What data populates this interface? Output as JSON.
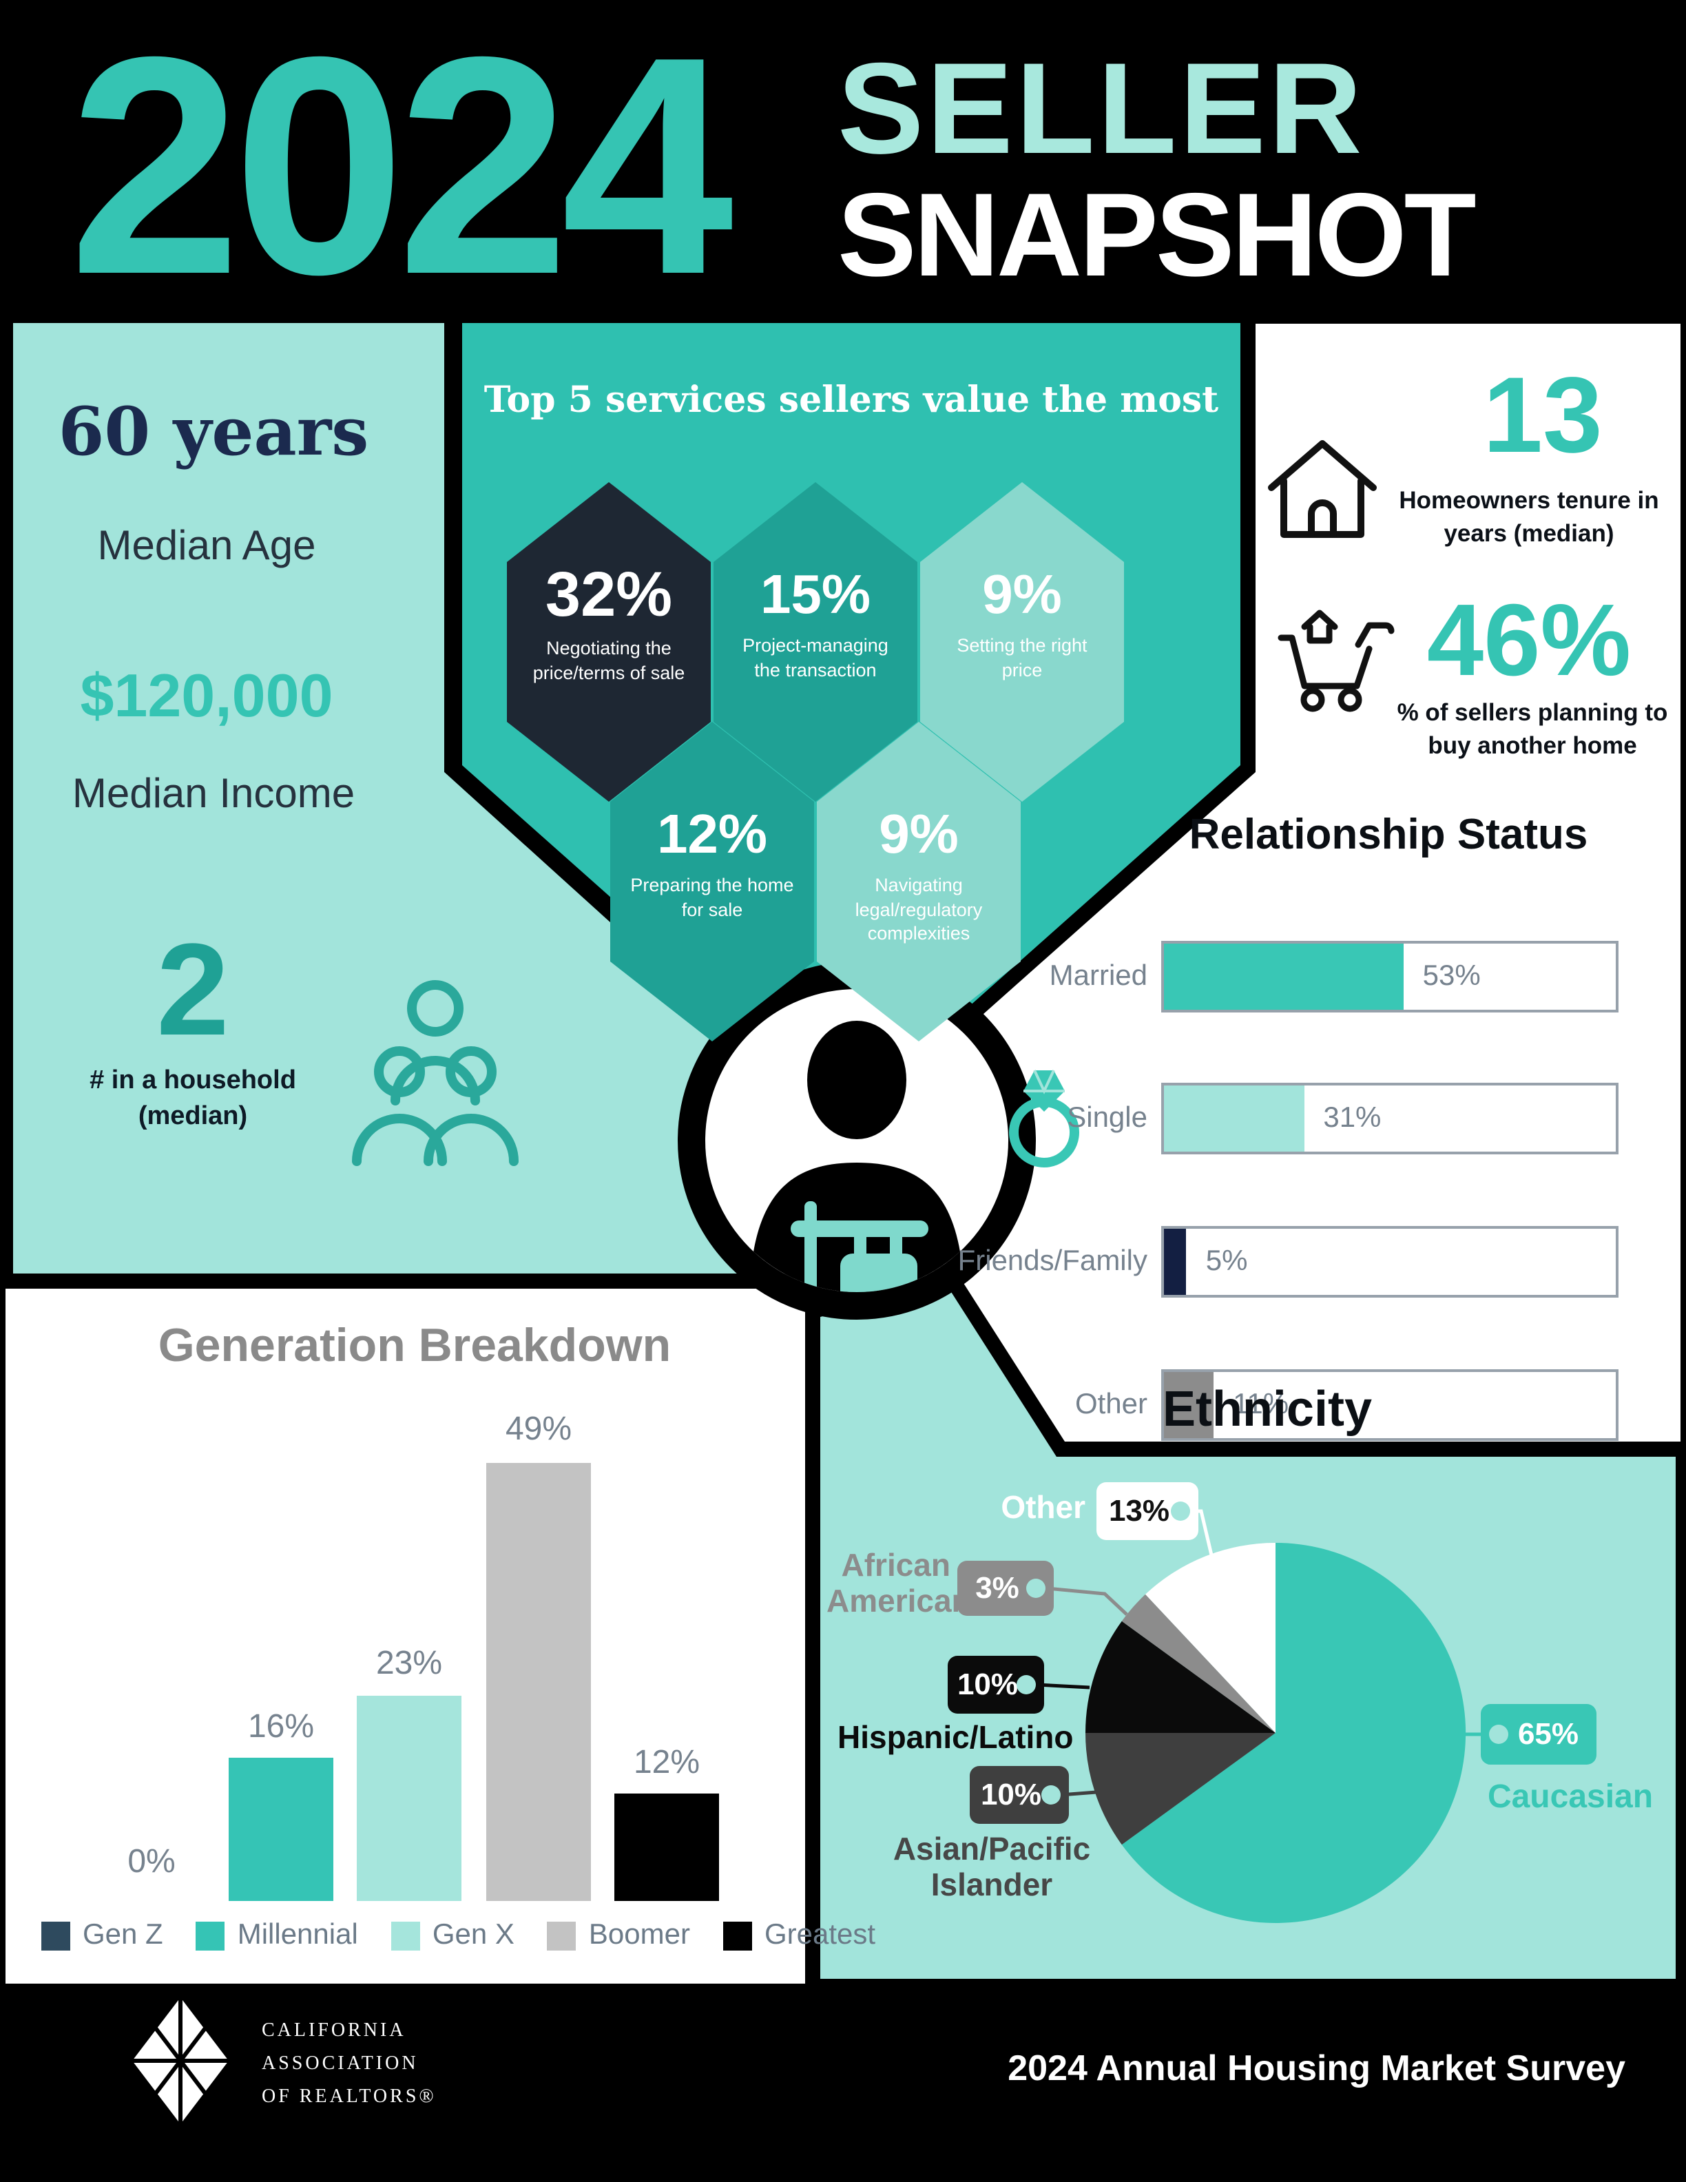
{
  "header": {
    "year": "2024",
    "title_line1": "SELLER",
    "title_line2": "SNAPSHOT"
  },
  "colors": {
    "accent_teal": "#35c4b3",
    "pale_teal": "#a2e4db",
    "panel_teal": "#2fc0b0",
    "dark_navy": "#1b2a4e",
    "black": "#000000"
  },
  "left_panel": {
    "age_value": "60 years",
    "age_label": "Median Age",
    "income_value": "$120,000",
    "income_label": "Median Income",
    "household_value": "2",
    "household_label": "# in a household (median)"
  },
  "services": {
    "title": "Top 5 services sellers value the most",
    "items": [
      {
        "value": "32%",
        "pct": 32,
        "label": "Negotiating the price/terms of sale",
        "color": "#1e2733"
      },
      {
        "value": "15%",
        "pct": 15,
        "label": "Project-managing the transaction",
        "color": "#1fa195"
      },
      {
        "value": "9%",
        "pct": 9,
        "label": "Setting the right price",
        "color": "#89d8cd"
      },
      {
        "value": "12%",
        "pct": 12,
        "label": "Preparing the home for sale",
        "color": "#1fa195"
      },
      {
        "value": "9%",
        "pct": 9,
        "label": "Navigating legal/regulatory complexities",
        "color": "#89d8cd"
      }
    ]
  },
  "tenure": {
    "value": "13",
    "label": "Homeowners tenure in years (median)"
  },
  "buy_again": {
    "value": "46%",
    "label": "% of sellers planning to buy another home"
  },
  "relationship": {
    "title": "Relationship Status",
    "items": [
      {
        "label": "Married",
        "value_label": "53%",
        "pct": 53,
        "color": "#39c7b5"
      },
      {
        "label": "Single",
        "value_label": "31%",
        "pct": 31,
        "color": "#a2e4db"
      },
      {
        "label": "Friends/Family",
        "value_label": "5%",
        "pct": 5,
        "color": "#131f42"
      },
      {
        "label": "Other",
        "value_label": "11%",
        "pct": 11,
        "color": "#8c8c8c"
      }
    ]
  },
  "generation": {
    "title": "Generation Breakdown",
    "items": [
      {
        "label": "Gen Z",
        "value_label": "0%",
        "pct": 0,
        "color": "#2e4a5e"
      },
      {
        "label": "Millennial",
        "value_label": "16%",
        "pct": 16,
        "color": "#35c4b5"
      },
      {
        "label": "Gen X",
        "value_label": "23%",
        "pct": 23,
        "color": "#a5e5dc"
      },
      {
        "label": "Boomer",
        "value_label": "49%",
        "pct": 49,
        "color": "#c3c3c3"
      },
      {
        "label": "Greatest",
        "value_label": "12%",
        "pct": 12,
        "color": "#000000"
      }
    ]
  },
  "ethnicity": {
    "title": "Ethnicity",
    "slices": [
      {
        "label": "Caucasian",
        "value_label": "65%",
        "pct": 65,
        "color": "#39c7b5",
        "label_color": "#39c7b5"
      },
      {
        "label": "Asian/Pacific Islander",
        "value_label": "10%",
        "pct": 10,
        "color": "#3f3f3f",
        "label_color": "#474747"
      },
      {
        "label": "Hispanic/Latino",
        "value_label": "10%",
        "pct": 10,
        "color": "#0b0b0b",
        "label_color": "#0b0b0b"
      },
      {
        "label": "African American",
        "value_label": "3%",
        "pct": 3,
        "color": "#8c8c8c",
        "label_color": "#8c8c8c"
      },
      {
        "label": "Other",
        "value_label": "13%",
        "pct": 13,
        "color": "#ffffff",
        "label_color": "#ffffff"
      }
    ]
  },
  "footer": {
    "org_line1": "CALIFORNIA",
    "org_line2": "ASSOCIATION",
    "org_line3": "OF REALTORS®",
    "survey": "2024 Annual Housing Market Survey"
  },
  "chart_data": [
    {
      "type": "bar",
      "title": "Top 5 services sellers value the most",
      "categories": [
        "Negotiating the price/terms of sale",
        "Project-managing the transaction",
        "Setting the right price",
        "Preparing the home for sale",
        "Navigating legal/regulatory complexities"
      ],
      "values": [
        32,
        15,
        9,
        12,
        9
      ],
      "unit": "%",
      "layout": "hexagon-grid"
    },
    {
      "type": "bar",
      "orientation": "horizontal",
      "title": "Relationship Status",
      "categories": [
        "Married",
        "Single",
        "Friends/Family",
        "Other"
      ],
      "values": [
        53,
        31,
        5,
        11
      ],
      "unit": "%",
      "xlim": [
        0,
        100
      ],
      "colors": [
        "#39c7b5",
        "#a2e4db",
        "#131f42",
        "#8c8c8c"
      ]
    },
    {
      "type": "bar",
      "title": "Generation Breakdown",
      "categories": [
        "Gen Z",
        "Millennial",
        "Gen X",
        "Boomer",
        "Greatest"
      ],
      "values": [
        0,
        16,
        23,
        49,
        12
      ],
      "unit": "%",
      "colors": [
        "#2e4a5e",
        "#35c4b5",
        "#a5e5dc",
        "#c3c3c3",
        "#000000"
      ],
      "legend_position": "bottom",
      "grid": false
    },
    {
      "type": "pie",
      "title": "Ethnicity",
      "labels": [
        "Caucasian",
        "Asian/Pacific Islander",
        "Hispanic/Latino",
        "African American",
        "Other"
      ],
      "values": [
        65,
        10,
        10,
        3,
        13
      ],
      "unit": "%",
      "colors": [
        "#39c7b5",
        "#3f3f3f",
        "#0b0b0b",
        "#8c8c8c",
        "#ffffff"
      ],
      "start_angle": "top",
      "direction": "clockwise"
    }
  ]
}
